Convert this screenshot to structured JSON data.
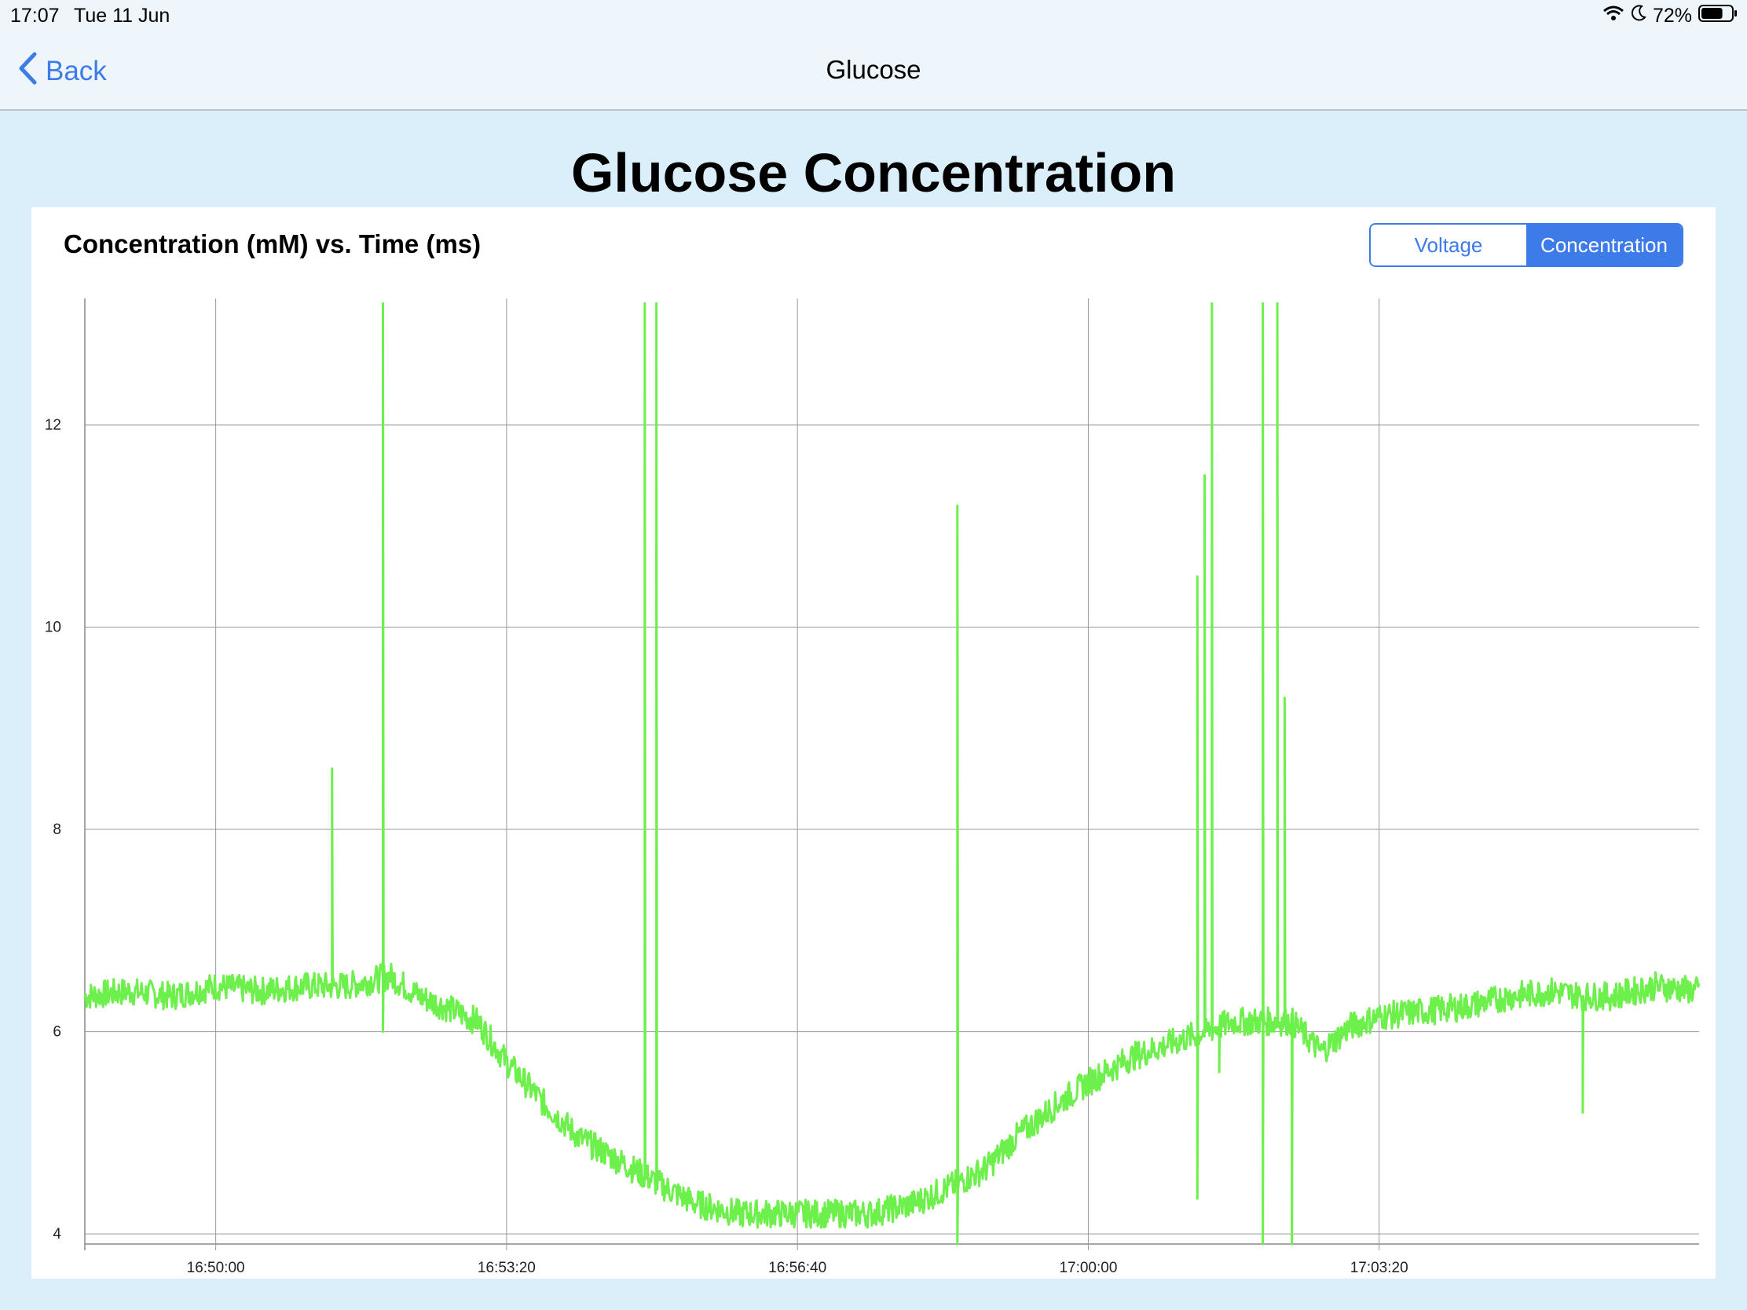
{
  "status_bar": {
    "time": "17:07",
    "date": "Tue 11 Jun",
    "battery": "72%",
    "battery_level": 0.72,
    "icons": [
      "wifi-icon",
      "moon-icon",
      "battery-icon"
    ]
  },
  "nav": {
    "back_label": "Back",
    "title": "Glucose"
  },
  "page": {
    "title": "Glucose Concentration"
  },
  "chart_header": {
    "subtitle": "Concentration (mM) vs. Time (ms)"
  },
  "segmented": {
    "options": [
      "Voltage",
      "Concentration"
    ],
    "selected": "Concentration"
  },
  "colors": {
    "accent": "#3d7ce8",
    "series": "#6ef04c",
    "background": "#dbeffa"
  },
  "chart_data": {
    "type": "line",
    "x_ticks": [
      "16:50:00",
      "16:53:20",
      "16:56:40",
      "17:00:00",
      "17:03:20"
    ],
    "y_ticks": [
      4,
      6,
      8,
      10,
      12
    ],
    "xlim": [
      "16:48:30",
      "17:07:00"
    ],
    "ylim": [
      3.9,
      13.25
    ],
    "grid": true,
    "legend": "none",
    "x": [
      "16:48:30",
      "16:49:00",
      "16:49:30",
      "16:50:00",
      "16:50:30",
      "16:51:00",
      "16:51:30",
      "16:52:00",
      "16:52:20",
      "16:52:45",
      "16:53:00",
      "16:53:20",
      "16:53:45",
      "16:54:10",
      "16:54:40",
      "16:55:10",
      "16:55:30",
      "16:55:45",
      "16:56:00",
      "16:56:30",
      "16:57:00",
      "16:57:30",
      "16:58:00",
      "16:58:30",
      "16:58:50",
      "16:59:10",
      "16:59:40",
      "17:00:00",
      "17:00:30",
      "17:01:00",
      "17:01:20",
      "17:01:40",
      "17:02:00",
      "17:02:20",
      "17:02:40",
      "17:03:00",
      "17:03:20",
      "17:03:50",
      "17:04:20",
      "17:04:50",
      "17:05:20",
      "17:05:40",
      "17:06:00",
      "17:06:30",
      "17:07:00"
    ],
    "y": [
      6.35,
      6.4,
      6.35,
      6.45,
      6.4,
      6.45,
      6.45,
      6.55,
      6.35,
      6.2,
      6.1,
      5.7,
      5.3,
      4.95,
      4.7,
      4.45,
      4.3,
      4.25,
      4.2,
      4.2,
      4.2,
      4.2,
      4.3,
      4.5,
      4.65,
      4.95,
      5.3,
      5.5,
      5.75,
      5.9,
      6.0,
      6.1,
      6.1,
      6.1,
      5.8,
      6.05,
      6.15,
      6.2,
      6.25,
      6.35,
      6.4,
      6.35,
      6.35,
      6.45,
      6.4
    ],
    "spikes": [
      {
        "x": "16:51:20",
        "y": 8.6
      },
      {
        "x": "16:51:55",
        "y": 13.2
      },
      {
        "x": "16:54:55",
        "y": 13.2
      },
      {
        "x": "16:55:03",
        "y": 13.2
      },
      {
        "x": "16:58:30",
        "y": 11.2
      },
      {
        "x": "17:01:15",
        "y": 10.5
      },
      {
        "x": "17:01:20",
        "y": 11.5
      },
      {
        "x": "17:01:25",
        "y": 13.2
      },
      {
        "x": "17:02:00",
        "y": 13.2
      },
      {
        "x": "17:02:10",
        "y": 13.2
      },
      {
        "x": "17:02:15",
        "y": 9.3
      }
    ],
    "dips": [
      {
        "x": "16:51:55",
        "y": 6.0
      },
      {
        "x": "16:58:30",
        "y": 3.9
      },
      {
        "x": "17:01:15",
        "y": 4.35
      },
      {
        "x": "17:01:30",
        "y": 5.6
      },
      {
        "x": "17:02:00",
        "y": 3.9
      },
      {
        "x": "17:02:20",
        "y": 3.9
      },
      {
        "x": "17:05:40",
        "y": 5.2
      }
    ]
  }
}
